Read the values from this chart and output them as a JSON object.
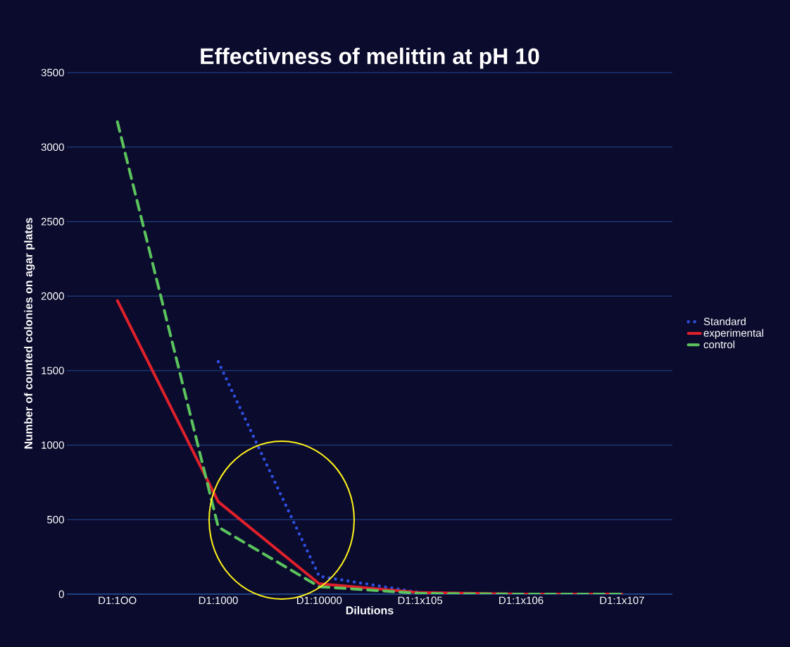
{
  "chart_data": {
    "type": "line",
    "title": "Effectivness of melittin at pH 10",
    "xlabel": "Dilutions",
    "ylabel": "Number of counted colonies on agar plates",
    "categories": [
      "D1:1OO",
      "D1:1000",
      "D1:10000",
      "D1:1x105",
      "D1:1x106",
      "D1:1x107"
    ],
    "series": [
      {
        "name": "Standard",
        "color": "#2f4fe0",
        "line_style": "dotted",
        "values": [
          null,
          1560,
          120,
          10,
          null,
          null
        ]
      },
      {
        "name": "experimental",
        "color": "#e0202a",
        "line_style": "solid",
        "values": [
          1970,
          620,
          70,
          10,
          0,
          0
        ]
      },
      {
        "name": "control",
        "color": "#5cc45c",
        "line_style": "dashed",
        "values": [
          3170,
          450,
          50,
          5,
          0,
          0
        ]
      }
    ],
    "ylim": [
      0,
      3500
    ],
    "yticks": [
      0,
      500,
      1000,
      1500,
      2000,
      2500,
      3000,
      3500
    ],
    "grid": "y",
    "legend": "right",
    "marker": "none"
  }
}
